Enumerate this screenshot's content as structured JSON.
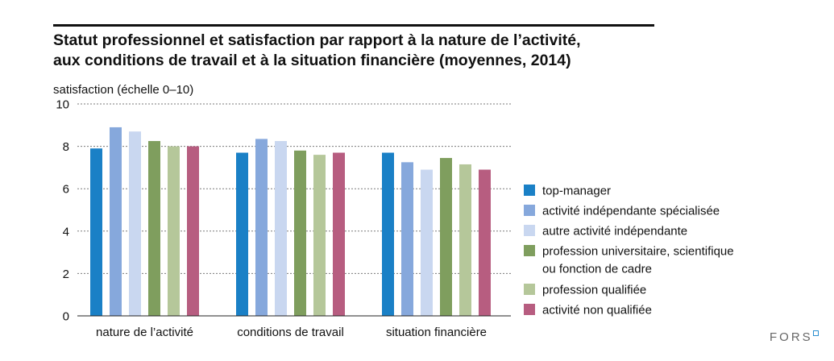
{
  "title_lines": [
    "Statut professionnel et satisfaction par rapport à la nature de l’activité,",
    "aux conditions de travail et à la situation financière (moyennes, 2014)"
  ],
  "logo_text": "FORS",
  "chart_data": {
    "type": "bar",
    "title": "Statut professionnel et satisfaction par rapport à la nature de l’activité, aux conditions de travail et à la situation financière (moyennes, 2014)",
    "ylabel": "satisfaction (échelle 0–10)",
    "xlabel": "",
    "ylim": [
      0,
      10
    ],
    "yticks": [
      0,
      2,
      4,
      6,
      8,
      10
    ],
    "grid": true,
    "legend_position": "right",
    "categories": [
      "nature de l’activité",
      "conditions de travail",
      "situation financière"
    ],
    "series": [
      {
        "name": "top-manager",
        "color": "#1a80c6",
        "values": [
          7.9,
          7.7,
          7.7
        ]
      },
      {
        "name": "activité indépendante spécialisée",
        "color": "#86a8dc",
        "values": [
          8.9,
          8.35,
          7.25
        ]
      },
      {
        "name": "autre activité indépendante",
        "color": "#c9d7f0",
        "values": [
          8.7,
          8.25,
          6.9
        ]
      },
      {
        "name": "profession universitaire, scientifique\nou fonction de cadre",
        "color": "#7f9e5e",
        "values": [
          8.25,
          7.8,
          7.45
        ]
      },
      {
        "name": "profession qualifiée",
        "color": "#b5c79a",
        "values": [
          8.0,
          7.6,
          7.15
        ]
      },
      {
        "name": "activité non qualifiée",
        "color": "#b75d80",
        "values": [
          8.0,
          7.7,
          6.9
        ]
      }
    ]
  }
}
